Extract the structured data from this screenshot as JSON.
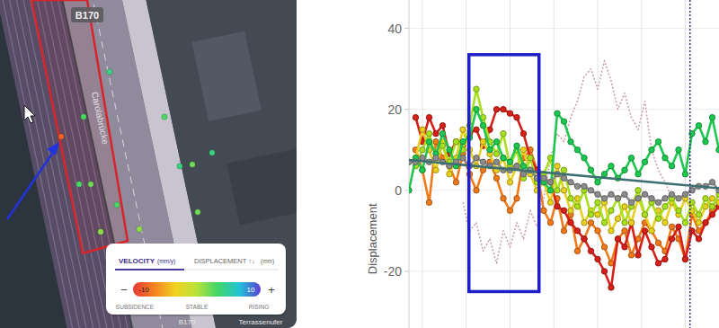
{
  "map": {
    "labels": [
      "B170",
      "B170",
      "Carolabrücke",
      "Terrassenufer"
    ],
    "point_velocities": [
      -8,
      3,
      2,
      4,
      3,
      2,
      4,
      3,
      4,
      2,
      1,
      3,
      1
    ]
  },
  "legend": {
    "tabs": [
      {
        "label": "VELOCITY",
        "unit": "(mm/y)"
      },
      {
        "label": "DISPLACEMENT ↑↓",
        "unit": "(mm)"
      }
    ],
    "buttons": [
      "−",
      "+"
    ],
    "range": [
      -10,
      10
    ],
    "colors": [
      "#e53935",
      "#f5821f",
      "#f2d321",
      "#b6e23a",
      "#3fd66a",
      "#22c3d6",
      "#5a3fd4"
    ],
    "scale_labels": [
      "SUBSIDENCE",
      "STABLE",
      "RISING"
    ]
  },
  "chart_data": {
    "type": "line",
    "y_label": "Displacement",
    "x": [
      0,
      1,
      2,
      3,
      4,
      5,
      6,
      7,
      8,
      9,
      10,
      11,
      12,
      13,
      14,
      15,
      16,
      17,
      18,
      19,
      20,
      21,
      22,
      23,
      24,
      25,
      26,
      27,
      28,
      29,
      30,
      31,
      32,
      33,
      34,
      35,
      36,
      37,
      38,
      39,
      40,
      41,
      42,
      43,
      44,
      45,
      46
    ],
    "xlim": [
      0,
      46
    ],
    "xticks": [
      2,
      8.5,
      15,
      21.5,
      28,
      34.5,
      41
    ],
    "ylim": [
      -34,
      47
    ],
    "yticks": [
      -20,
      0,
      20,
      40
    ],
    "grid": true,
    "tick_labels": "y",
    "series": [
      {
        "color": "#c9a0a8",
        "marker": "none",
        "line_style": "dotted",
        "x": [
          8,
          9,
          10,
          11,
          12,
          13,
          14,
          15,
          16,
          17,
          18,
          19,
          20,
          21,
          22,
          23,
          24,
          25,
          26,
          27,
          28,
          29,
          30,
          31,
          32,
          33,
          34,
          35,
          36,
          37,
          38,
          39
        ],
        "values": [
          -3,
          -10,
          -8,
          -15,
          -12,
          -18,
          -10,
          -14,
          -8,
          -12,
          -5,
          -9,
          -2,
          8,
          14,
          12,
          18,
          22,
          28,
          30,
          25,
          32,
          27,
          20,
          24,
          18,
          15,
          22,
          10,
          5,
          2,
          -2
        ]
      },
      {
        "color": "#f07a1a",
        "marker": "circle",
        "line_style": "solid",
        "values": [
          null,
          10,
          5,
          -3,
          12,
          8,
          6,
          2,
          9,
          4,
          0,
          5,
          7,
          3,
          -2,
          -5,
          -2,
          8,
          10,
          5,
          -5,
          -8,
          -2,
          -10,
          -6,
          -15,
          -12,
          -8,
          -10,
          -14,
          -18,
          -12,
          -10,
          -16,
          -12,
          -8,
          -10,
          -13,
          -15,
          -9,
          -12,
          -17,
          -6,
          -10,
          -8,
          -5,
          -3
        ]
      },
      {
        "color": "#d6201a",
        "marker": "circle",
        "line_style": "solid",
        "values": [
          null,
          18,
          12,
          18,
          14,
          16,
          9,
          12,
          11,
          14,
          15,
          11,
          15,
          20,
          20,
          19,
          18,
          14,
          8,
          5,
          3,
          2,
          -4,
          -5,
          -8,
          -10,
          -12,
          -15,
          -17,
          -20,
          -24,
          -12,
          -14,
          -8,
          -16,
          -10,
          -14,
          -18,
          -17,
          -12,
          -9,
          -17,
          -10,
          -12,
          -8,
          -6,
          -4
        ]
      },
      {
        "color": "#e8d020",
        "marker": "circle",
        "line_style": "solid",
        "values": [
          null,
          8,
          15,
          10,
          5,
          12,
          4,
          8,
          15,
          10,
          6,
          12,
          9,
          5,
          8,
          2,
          6,
          10,
          4,
          0,
          2,
          -3,
          6,
          0,
          -5,
          -2,
          -8,
          -5,
          -6,
          -3,
          -10,
          -7,
          -4,
          -8,
          -2,
          -6,
          -10,
          -5,
          -8,
          -3,
          -6,
          -2,
          -5,
          -8,
          -4,
          -2,
          -3
        ]
      },
      {
        "color": "#a8e020",
        "marker": "circle",
        "line_style": "solid",
        "values": [
          null,
          6,
          10,
          14,
          8,
          11,
          7,
          12,
          10,
          16,
          25,
          18,
          12,
          9,
          14,
          6,
          10,
          3,
          8,
          2,
          4,
          8,
          0,
          5,
          -2,
          -4,
          0,
          -6,
          -3,
          -8,
          -5,
          -2,
          -8,
          -4,
          0,
          -6,
          -3,
          -7,
          -4,
          -2,
          -5,
          -8,
          -3,
          -6,
          -2,
          -4,
          -1
        ]
      },
      {
        "color": "#1ec850",
        "marker": "circle",
        "line_style": "solid",
        "values": [
          0,
          8,
          5,
          12,
          9,
          14,
          10,
          6,
          12,
          13,
          20,
          16,
          10,
          12,
          8,
          7,
          11,
          6,
          5,
          3,
          2,
          0,
          19,
          17,
          12,
          10,
          8,
          5,
          2,
          4,
          6,
          3,
          5,
          8,
          4,
          7,
          10,
          12,
          8,
          6,
          10,
          4,
          14,
          16,
          12,
          18,
          10
        ]
      },
      {
        "color": "#8c8c8c",
        "marker": "circle",
        "line_style": "solid",
        "values": [
          7,
          7,
          8,
          7,
          8,
          7,
          6,
          7,
          8,
          6,
          8,
          7,
          6,
          7,
          5,
          5,
          6,
          4,
          5,
          3,
          3,
          2,
          4,
          3,
          2,
          1,
          1,
          0,
          -1,
          -2,
          -1,
          -2,
          -1,
          -3,
          -2,
          -1,
          -2,
          -3,
          -2,
          -1,
          -2,
          -1,
          0,
          1,
          1,
          2,
          0
        ]
      },
      {
        "color": "#3d6e70",
        "marker": "none",
        "line_style": "solid",
        "x": [
          0,
          46
        ],
        "values": [
          7.5,
          0.5
        ]
      }
    ],
    "vlines": [
      {
        "x": 41.7,
        "color": "#3a2d8c",
        "line_style": "dotted"
      }
    ],
    "highlight": {
      "x": [
        8.9,
        19.3
      ],
      "y": [
        -25,
        33.5
      ],
      "color": "#1f1fc8"
    }
  }
}
